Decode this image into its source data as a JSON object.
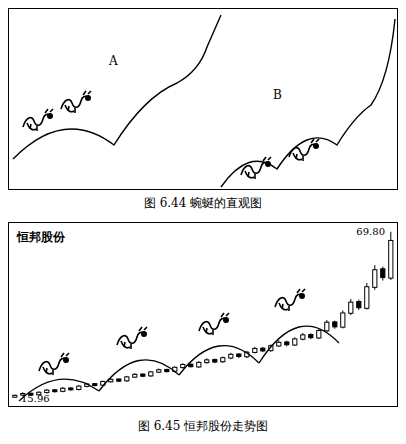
{
  "diagram": {
    "caption": "图 6.44  蜿蜒的直观图",
    "labels": [
      "A",
      "B"
    ]
  },
  "chart_data": {
    "type": "candlestick",
    "title": "恒邦股份",
    "caption": "图 6.45  恒邦股份走势图",
    "categories": [
      null,
      null,
      null,
      null,
      null,
      null,
      null,
      null,
      null,
      null,
      null,
      null,
      null,
      null,
      null,
      null,
      null,
      null,
      null,
      null,
      null,
      null,
      null,
      null,
      null,
      null,
      null,
      null,
      null,
      null,
      null,
      null,
      null,
      null,
      null,
      null,
      null,
      null,
      null,
      null,
      null,
      null,
      null,
      null,
      null,
      null,
      null,
      null
    ],
    "open": [
      16.2,
      16.9,
      17.5,
      17.0,
      17.7,
      18.6,
      18.1,
      19.2,
      18.7,
      19.7,
      20.6,
      20.1,
      21.2,
      22.1,
      21.5,
      22.7,
      23.7,
      23.1,
      24.3,
      25.2,
      24.6,
      25.8,
      26.9,
      26.0,
      27.4,
      28.4,
      27.7,
      28.9,
      30.2,
      29.3,
      30.7,
      32.1,
      31.3,
      32.8,
      34.1,
      33.1,
      35.0,
      36.5,
      35.4,
      37.7,
      40.6,
      38.9,
      43.4,
      47.2,
      45.0,
      51.8,
      57.8,
      54.8
    ],
    "high": [
      17.1,
      17.8,
      17.7,
      18.1,
      18.9,
      18.8,
      19.5,
      19.4,
      20.1,
      20.9,
      20.8,
      21.6,
      22.4,
      22.3,
      23.1,
      24.0,
      23.9,
      24.7,
      25.5,
      25.4,
      26.2,
      27.2,
      27.1,
      27.9,
      28.8,
      28.7,
      29.4,
      30.6,
      30.5,
      31.2,
      32.5,
      32.4,
      33.3,
      34.6,
      34.5,
      35.6,
      37.0,
      36.9,
      38.4,
      41.2,
      41.0,
      44.3,
      48.0,
      47.8,
      53.2,
      59.0,
      58.5,
      69.8
    ],
    "low": [
      15.96,
      16.6,
      16.7,
      16.7,
      17.4,
      17.7,
      17.8,
      18.3,
      18.4,
      19.4,
      19.7,
      19.8,
      20.9,
      21.1,
      21.2,
      22.4,
      22.7,
      22.8,
      24.0,
      24.2,
      24.3,
      25.5,
      25.8,
      25.7,
      27.1,
      27.2,
      27.3,
      28.5,
      28.9,
      28.9,
      30.4,
      30.8,
      30.9,
      32.5,
      32.7,
      32.8,
      34.6,
      35.0,
      35.0,
      37.2,
      38.4,
      38.5,
      42.8,
      44.5,
      44.6,
      51.0,
      54.0,
      54.2
    ],
    "close": [
      16.8,
      17.4,
      16.9,
      17.8,
      18.5,
      18.0,
      19.1,
      18.6,
      19.8,
      20.5,
      20.0,
      21.3,
      22.0,
      21.4,
      22.8,
      23.6,
      23.0,
      24.4,
      25.1,
      24.5,
      25.9,
      26.8,
      26.1,
      27.5,
      28.3,
      27.6,
      29.0,
      30.1,
      29.4,
      30.8,
      32.0,
      31.2,
      32.9,
      34.0,
      33.2,
      35.1,
      36.4,
      35.5,
      37.8,
      40.5,
      39.0,
      43.5,
      47.0,
      45.2,
      52.0,
      57.5,
      55.0,
      67.0
    ],
    "ylim": [
      14,
      72
    ],
    "tick_labels": false,
    "color": "#000000",
    "annotations": [
      {
        "text": "69.80",
        "value": 69.8
      },
      {
        "text": "15.96",
        "value": 15.96
      }
    ]
  }
}
